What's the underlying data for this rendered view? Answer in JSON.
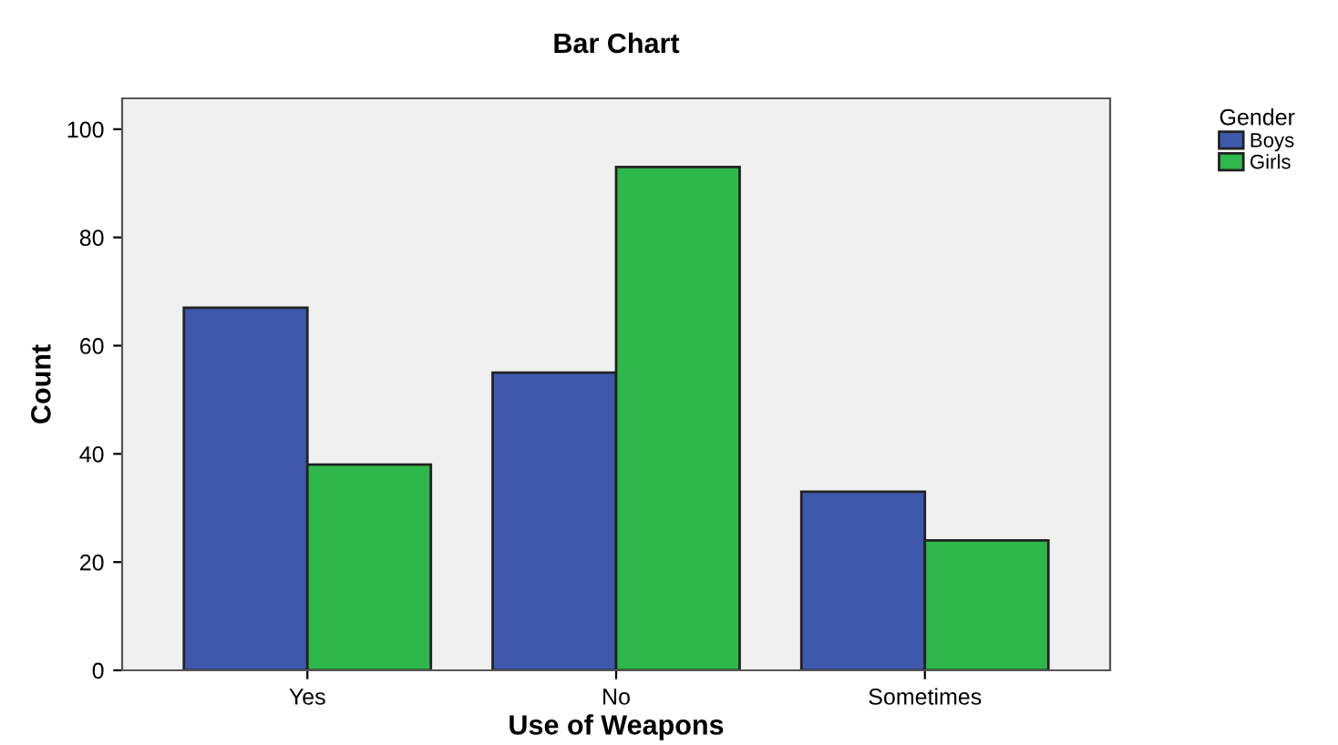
{
  "chart_data": {
    "type": "bar",
    "title": "Bar Chart",
    "xlabel": "Use of Weapons",
    "ylabel": "Count",
    "legend_title": "Gender",
    "categories": [
      "Yes",
      "No",
      "Sometimes"
    ],
    "series": [
      {
        "name": "Boys",
        "color": "#3e58ac",
        "values": [
          67,
          55,
          33
        ]
      },
      {
        "name": "Girls",
        "color": "#2eb84b",
        "values": [
          38,
          93,
          24
        ]
      }
    ],
    "ylim": [
      0,
      105.7
    ],
    "yticks": [
      0,
      20,
      40,
      60,
      80,
      100
    ],
    "grid": false,
    "legend": "top right"
  }
}
